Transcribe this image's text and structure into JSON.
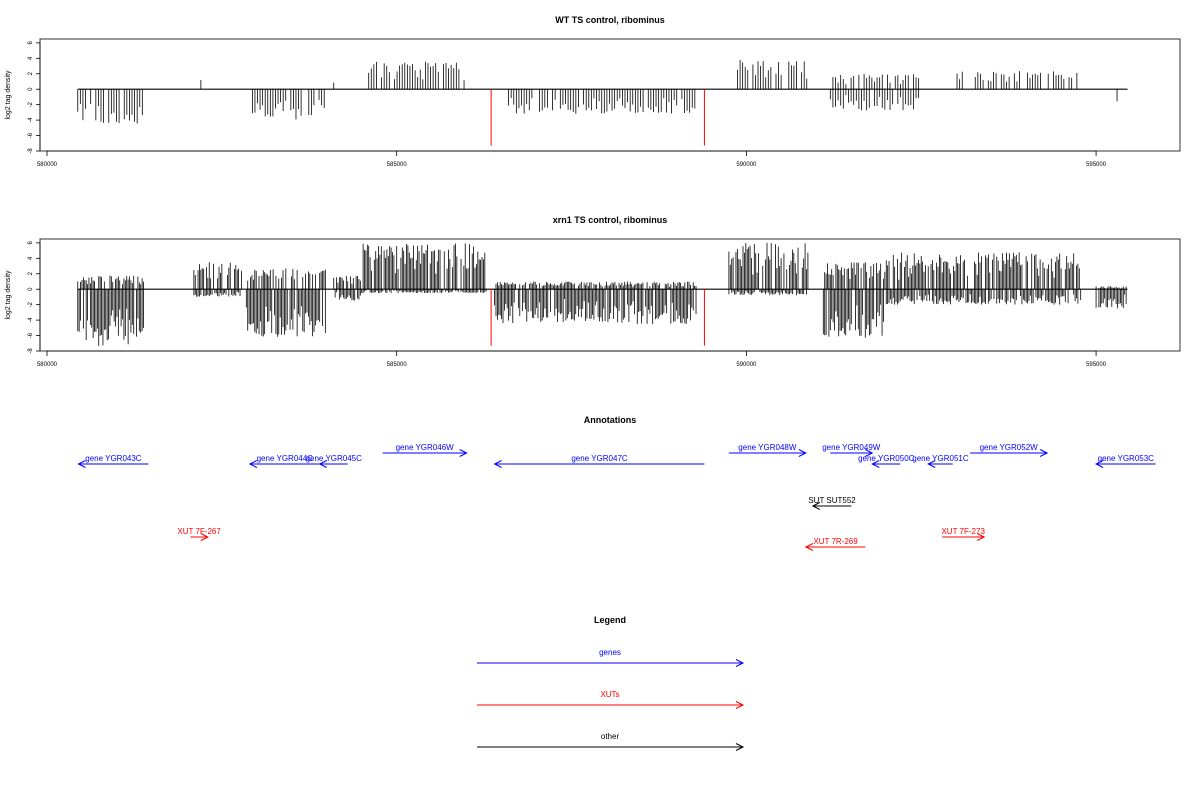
{
  "colors": {
    "genes": "#0000ff",
    "xuts": "#ff0000",
    "other": "#000000",
    "axis": "#000000"
  },
  "chart_data": [
    {
      "type": "bar",
      "title": "WT TS control, ribominus",
      "ylabel": "log2 tag density",
      "xlim": [
        579900,
        596200
      ],
      "ylim": [
        -8,
        6.5
      ],
      "xticks": [
        580000,
        585000,
        590000,
        595000
      ],
      "yticks": [
        -8,
        -6,
        -4,
        -2,
        0,
        2,
        4,
        6
      ],
      "grid": false,
      "markers": [
        586350,
        589400
      ],
      "marker_color": "#ff0000",
      "density": [
        {
          "x_from": 580440,
          "x_to": 581400,
          "min": -4.6,
          "max": 0
        },
        {
          "x_from": 582200,
          "x_to": 582210,
          "min": 0,
          "max": 1.2
        },
        {
          "x_from": 582900,
          "x_to": 584000,
          "min": -4.0,
          "max": 0
        },
        {
          "x_from": 584100,
          "x_to": 584110,
          "min": 0,
          "max": 1.0
        },
        {
          "x_from": 584600,
          "x_to": 586000,
          "min": 0,
          "max": 3.6
        },
        {
          "x_from": 586600,
          "x_to": 589300,
          "min": -3.2,
          "max": 0
        },
        {
          "x_from": 589800,
          "x_to": 590900,
          "min": 0,
          "max": 3.8
        },
        {
          "x_from": 591200,
          "x_to": 592500,
          "min": -2.8,
          "max": 2.0
        },
        {
          "x_from": 592900,
          "x_to": 594800,
          "min": 0,
          "max": 2.4
        },
        {
          "x_from": 595300,
          "x_to": 595330,
          "min": -1.6,
          "max": 0
        }
      ]
    },
    {
      "type": "bar",
      "title": "xrn1 TS control, ribominus",
      "ylabel": "log2 tag density",
      "xlim": [
        579900,
        596200
      ],
      "ylim": [
        -8,
        6.5
      ],
      "xticks": [
        580000,
        585000,
        590000,
        595000
      ],
      "yticks": [
        -8,
        -6,
        -4,
        -2,
        0,
        2,
        4,
        6
      ],
      "grid": false,
      "markers": [
        586350,
        589400
      ],
      "marker_color": "#ff0000",
      "density": [
        {
          "x_from": 580440,
          "x_to": 581400,
          "min": -7.5,
          "max": 1.8
        },
        {
          "x_from": 582100,
          "x_to": 582800,
          "min": -1.0,
          "max": 3.5
        },
        {
          "x_from": 582850,
          "x_to": 584000,
          "min": -6.2,
          "max": 2.8
        },
        {
          "x_from": 584100,
          "x_to": 584500,
          "min": -1.5,
          "max": 1.8
        },
        {
          "x_from": 584500,
          "x_to": 586300,
          "min": -0.5,
          "max": 6.0
        },
        {
          "x_from": 586400,
          "x_to": 589300,
          "min": -4.5,
          "max": 1.0
        },
        {
          "x_from": 589750,
          "x_to": 590900,
          "min": -0.8,
          "max": 6.0
        },
        {
          "x_from": 591100,
          "x_to": 592000,
          "min": -6.3,
          "max": 3.5
        },
        {
          "x_from": 592000,
          "x_to": 594800,
          "min": -2.0,
          "max": 4.8
        },
        {
          "x_from": 595000,
          "x_to": 595450,
          "min": -2.5,
          "max": 0.4
        }
      ]
    }
  ],
  "annotations": {
    "title": "Annotations",
    "xlim": [
      579900,
      596200
    ],
    "features": [
      {
        "label": "gene YGR043C",
        "type": "gene",
        "start": 580450,
        "end": 581450,
        "strand": "-",
        "row": 1
      },
      {
        "label": "gene YGR044C",
        "type": "gene",
        "start": 582900,
        "end": 583900,
        "strand": "-",
        "row": 1
      },
      {
        "label": "gene YGR045C",
        "type": "gene",
        "start": 583900,
        "end": 584300,
        "strand": "-",
        "row": 1
      },
      {
        "label": "gene YGR046W",
        "type": "gene",
        "start": 584800,
        "end": 586000,
        "strand": "+",
        "row": 0
      },
      {
        "label": "gene YGR047C",
        "type": "gene",
        "start": 586400,
        "end": 589400,
        "strand": "-",
        "row": 1
      },
      {
        "label": "gene YGR048W",
        "type": "gene",
        "start": 589750,
        "end": 590850,
        "strand": "+",
        "row": 0
      },
      {
        "label": "gene YGR049W",
        "type": "gene",
        "start": 591200,
        "end": 591800,
        "strand": "+",
        "row": 0
      },
      {
        "label": "gene YGR050C",
        "type": "gene",
        "start": 591800,
        "end": 592200,
        "strand": "-",
        "row": 1
      },
      {
        "label": "gene YGR051C",
        "type": "gene",
        "start": 592600,
        "end": 592950,
        "strand": "-",
        "row": 1
      },
      {
        "label": "gene YGR052W",
        "type": "gene",
        "start": 593200,
        "end": 594300,
        "strand": "+",
        "row": 0
      },
      {
        "label": "gene YGR053C",
        "type": "gene",
        "start": 595000,
        "end": 595850,
        "strand": "-",
        "row": 1
      },
      {
        "label": "SUT SUT552",
        "type": "other",
        "start": 590950,
        "end": 591500,
        "strand": "-",
        "row": 2
      },
      {
        "label": "XUT 7F-267",
        "type": "xut",
        "start": 582050,
        "end": 582300,
        "strand": "+",
        "row": 3
      },
      {
        "label": "XUT 7R-269",
        "type": "xut",
        "start": 590850,
        "end": 591700,
        "strand": "-",
        "row": 4
      },
      {
        "label": "XUT 7F-273",
        "type": "xut",
        "start": 592800,
        "end": 593400,
        "strand": "+",
        "row": 3
      }
    ]
  },
  "legend": {
    "title": "Legend",
    "items": [
      {
        "label": "genes",
        "type": "gene"
      },
      {
        "label": "XUTs",
        "type": "xut"
      },
      {
        "label": "other",
        "type": "other"
      }
    ]
  }
}
